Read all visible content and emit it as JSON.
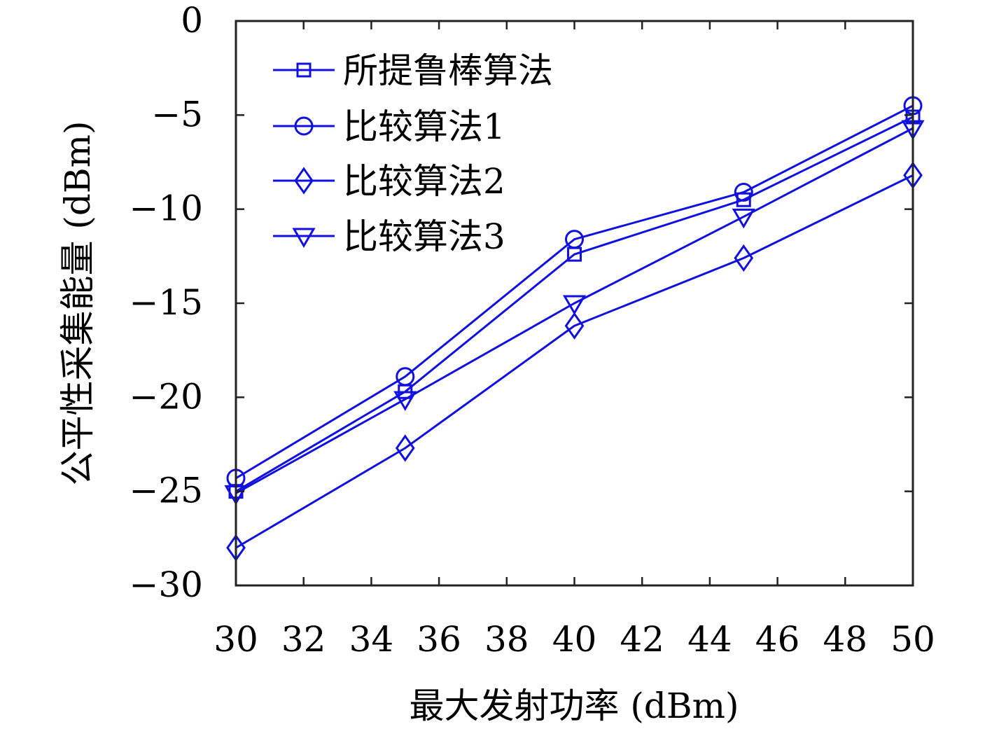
{
  "chart_data": {
    "type": "line",
    "title": "",
    "xlabel": "最大发射功率 (dBm)",
    "ylabel": "公平性采集能量 (dBm)",
    "xlim": [
      30,
      50
    ],
    "ylim": [
      -30,
      0
    ],
    "x_ticks": [
      "30",
      "32",
      "34",
      "36",
      "38",
      "40",
      "42",
      "44",
      "46",
      "48",
      "50"
    ],
    "y_ticks": [
      "0",
      "−5",
      "−10",
      "−15",
      "−20",
      "−25",
      "−30"
    ],
    "x": [
      30,
      35,
      40,
      45,
      50
    ],
    "grid": false,
    "legend_position": "top-left",
    "line_color": "#1010e0",
    "series": [
      {
        "name": "所提鲁棒算法",
        "marker": "square",
        "values": [
          -25.0,
          -19.7,
          -12.4,
          -9.5,
          -5.1
        ]
      },
      {
        "name": "比较算法1",
        "marker": "circle",
        "values": [
          -24.3,
          -18.9,
          -11.6,
          -9.1,
          -4.5
        ]
      },
      {
        "name": "比较算法2",
        "marker": "diamond",
        "values": [
          -28.0,
          -22.7,
          -16.2,
          -12.6,
          -8.2
        ]
      },
      {
        "name": "比较算法3",
        "marker": "triangle-down",
        "values": [
          -25.1,
          -20.1,
          -15.0,
          -10.4,
          -5.7
        ]
      }
    ]
  }
}
